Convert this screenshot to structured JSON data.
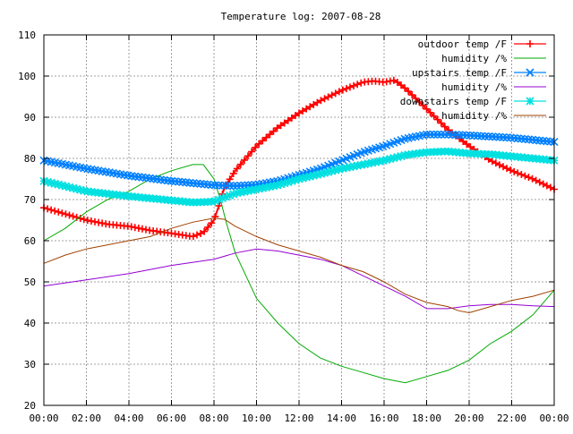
{
  "chart_data": {
    "type": "line",
    "title": "Temperature log: 2007-08-28",
    "xlabel": "",
    "ylabel": "",
    "x_ticks": [
      "00:00",
      "02:00",
      "04:00",
      "06:00",
      "08:00",
      "10:00",
      "12:00",
      "14:00",
      "16:00",
      "18:00",
      "20:00",
      "22:00",
      "00:00"
    ],
    "x_range_hours": [
      0,
      24
    ],
    "y_ticks": [
      20,
      30,
      40,
      50,
      60,
      70,
      80,
      90,
      100,
      110
    ],
    "ylim": [
      20,
      110
    ],
    "grid": true,
    "legend_position": "top-right",
    "series": [
      {
        "name": "outdoor temp /F",
        "color": "#ff0000",
        "marker": "plus",
        "x": [
          0,
          1,
          2,
          3,
          4,
          5,
          6,
          7,
          7.5,
          8,
          8.2,
          8.5,
          9,
          10,
          11,
          12,
          13,
          14,
          15,
          15.5,
          16,
          16.5,
          17,
          18,
          19,
          20,
          21,
          22,
          23,
          24
        ],
        "y": [
          68,
          66.5,
          65,
          64,
          63.5,
          62.5,
          61.8,
          61,
          62,
          65,
          68,
          73,
          77,
          83,
          87.5,
          91,
          94,
          96.5,
          98.5,
          98.8,
          98.5,
          99,
          97,
          92,
          87,
          83,
          79.5,
          77,
          75,
          72.5
        ]
      },
      {
        "name": "humidity /%",
        "color": "#00aa00",
        "marker": "none",
        "x": [
          0,
          1,
          2,
          3,
          4,
          5,
          6,
          7,
          7.5,
          8,
          8.3,
          8.6,
          9,
          10,
          11,
          12,
          13,
          14,
          15,
          16,
          17,
          18,
          19,
          20,
          21,
          22,
          23,
          24
        ],
        "y": [
          60,
          63,
          67,
          70,
          72,
          75,
          77,
          78.5,
          78.5,
          75,
          70,
          64,
          57,
          46,
          40,
          35,
          31.5,
          29.5,
          28,
          26.5,
          25.5,
          27,
          28.5,
          31,
          35,
          38,
          42,
          48
        ]
      },
      {
        "name": "upstairs temp /F",
        "color": "#0080ff",
        "marker": "cross",
        "x": [
          0,
          2,
          4,
          6,
          8,
          9,
          10,
          11,
          12,
          13,
          14,
          15,
          16,
          17,
          18,
          19,
          20,
          21,
          22,
          23,
          24
        ],
        "y": [
          79.5,
          77.5,
          75.8,
          74.5,
          73.5,
          73.3,
          73.6,
          74.5,
          76,
          77.5,
          79.5,
          81.5,
          83,
          84.8,
          85.8,
          85.8,
          85.6,
          85.3,
          85,
          84.5,
          84
        ]
      },
      {
        "name": "humidity /%",
        "color": "#9400d3",
        "marker": "none",
        "x": [
          0,
          2,
          4,
          6,
          8,
          9,
          10,
          11,
          12,
          13,
          14,
          15,
          16,
          17,
          18,
          19,
          20,
          21,
          22,
          23,
          24
        ],
        "y": [
          49,
          50.5,
          52,
          54,
          55.5,
          57,
          58,
          57.5,
          56.5,
          55.5,
          54,
          51.5,
          49,
          46.5,
          43.5,
          43.5,
          44.2,
          44.5,
          44.5,
          44.2,
          44
        ]
      },
      {
        "name": "downstairs temp /F",
        "color": "#00e0e0",
        "marker": "star",
        "x": [
          0,
          2,
          4,
          6,
          7,
          8,
          9,
          10,
          11,
          12,
          13,
          14,
          15,
          16,
          17,
          18,
          19,
          20,
          21,
          22,
          23,
          24
        ],
        "y": [
          74.5,
          72,
          70.8,
          69.8,
          69.3,
          69.5,
          71.5,
          72.5,
          73.5,
          75,
          76.2,
          77.5,
          78.5,
          79.5,
          80.8,
          81.5,
          81.7,
          81.2,
          81,
          80.5,
          80,
          79.5
        ]
      },
      {
        "name": "humidity /%",
        "color": "#a04000",
        "marker": "none",
        "x": [
          0,
          1,
          2,
          3,
          4,
          5,
          6,
          7,
          8,
          8.5,
          9,
          10,
          11,
          12,
          13,
          14,
          15,
          16,
          17,
          18,
          19,
          19.5,
          20,
          21,
          22,
          23,
          24
        ],
        "y": [
          54.5,
          56.5,
          58,
          59,
          60,
          61,
          63,
          64.5,
          65.5,
          65.2,
          63.5,
          61,
          59,
          57.5,
          56,
          54,
          52.5,
          50,
          47,
          45,
          44,
          43,
          42.5,
          44,
          45.5,
          46.5,
          48
        ]
      }
    ]
  }
}
